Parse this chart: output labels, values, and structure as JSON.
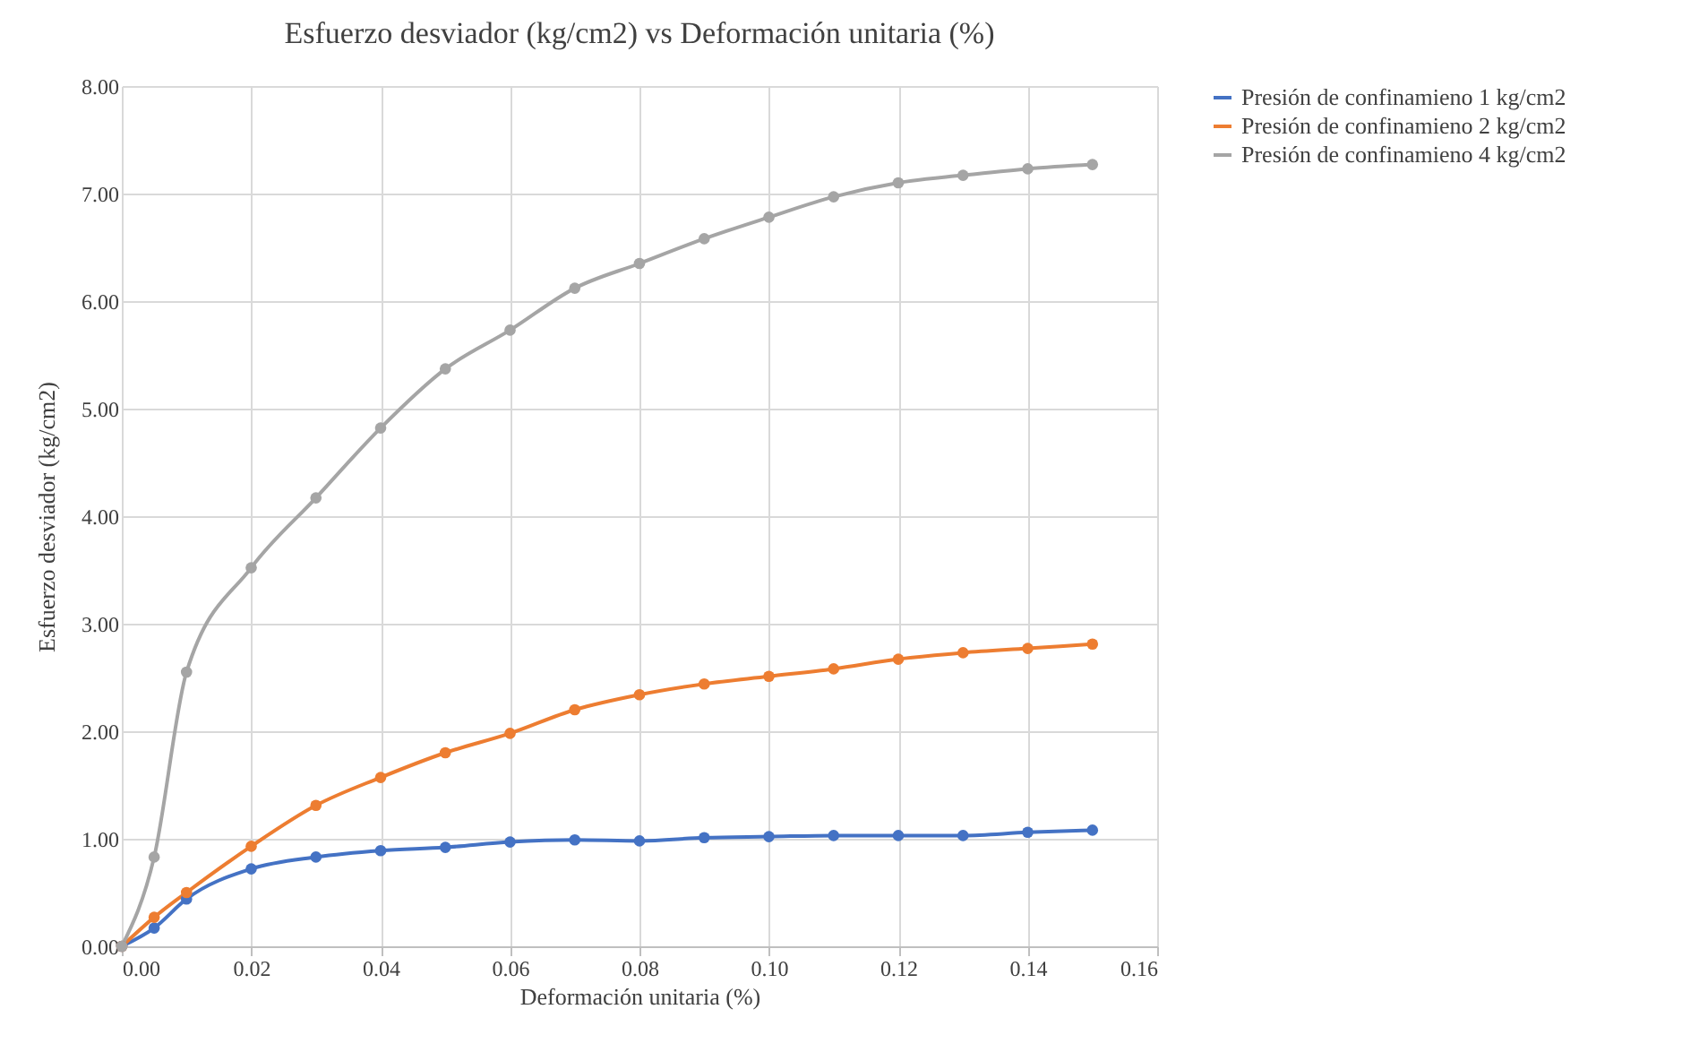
{
  "chart_data": {
    "type": "line",
    "title": "Esfuerzo desviador (kg/cm2) vs Deformación unitaria (%)",
    "xlabel": "Deformación unitaria (%)",
    "ylabel": "Esfuerzo desviador (kg/cm2)",
    "x": [
      0,
      0.005,
      0.01,
      0.02,
      0.03,
      0.04,
      0.05,
      0.06,
      0.07,
      0.08,
      0.09,
      0.1,
      0.11,
      0.12,
      0.13,
      0.14,
      0.15
    ],
    "series": [
      {
        "name": "Presión de confinamieno 1 kg/cm2",
        "color": "#4472c4",
        "values": [
          0,
          0.17,
          0.44,
          0.72,
          0.83,
          0.89,
          0.92,
          0.97,
          0.99,
          0.98,
          1.01,
          1.02,
          1.03,
          1.03,
          1.03,
          1.06,
          1.08
        ]
      },
      {
        "name": "Presión de confinamieno 2 kg/cm2",
        "color": "#ed7d31",
        "values": [
          0,
          0.27,
          0.5,
          0.93,
          1.31,
          1.57,
          1.8,
          1.98,
          2.2,
          2.34,
          2.44,
          2.51,
          2.58,
          2.67,
          2.73,
          2.77,
          2.81
        ]
      },
      {
        "name": "Presión de confinamieno 4 kg/cm2",
        "color": "#a5a5a5",
        "values": [
          0,
          0.83,
          2.55,
          3.52,
          4.17,
          4.82,
          5.37,
          5.73,
          6.12,
          6.35,
          6.58,
          6.78,
          6.97,
          7.1,
          7.17,
          7.23,
          7.27
        ]
      }
    ],
    "xlim": [
      0,
      0.16
    ],
    "xticks": [
      {
        "value": 0,
        "label": "0.00"
      },
      {
        "value": 0.02,
        "label": "0.02"
      },
      {
        "value": 0.04,
        "label": "0.04"
      },
      {
        "value": 0.06,
        "label": "0.06"
      },
      {
        "value": 0.08,
        "label": "0.08"
      },
      {
        "value": 0.1,
        "label": "0.10"
      },
      {
        "value": 0.12,
        "label": "0.12"
      },
      {
        "value": 0.14,
        "label": "0.14"
      },
      {
        "value": 0.16,
        "label": "0.16"
      }
    ],
    "ylim": [
      0,
      8
    ],
    "yticks": [
      {
        "value": 0,
        "label": "0.00"
      },
      {
        "value": 1,
        "label": "1.00"
      },
      {
        "value": 2,
        "label": "2.00"
      },
      {
        "value": 3,
        "label": "3.00"
      },
      {
        "value": 4,
        "label": "4.00"
      },
      {
        "value": 5,
        "label": "5.00"
      },
      {
        "value": 6,
        "label": "6.00"
      },
      {
        "value": 7,
        "label": "7.00"
      },
      {
        "value": 8,
        "label": "8.00"
      }
    ],
    "grid": true,
    "legend": "right",
    "marker": "circle",
    "line_style": "solid"
  }
}
